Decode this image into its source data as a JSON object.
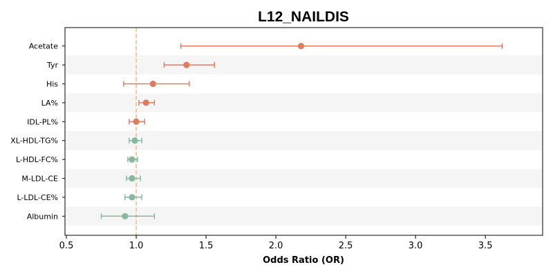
{
  "chart_data": {
    "type": "forest",
    "title": "L12_NAILDIS",
    "xlabel": "Odds Ratio (OR)",
    "ylabel": "",
    "xlim": [
      0.49,
      3.91
    ],
    "x_ticks": [
      0.5,
      1.0,
      1.5,
      2.0,
      2.5,
      3.0,
      3.5
    ],
    "x_tick_labels": [
      "0.5",
      "1.0",
      "1.5",
      "2.0",
      "2.5",
      "3.0",
      "3.5"
    ],
    "reference_line": {
      "x": 1.0,
      "style": "dashed",
      "color": "#f5c07a"
    },
    "grid": false,
    "row_banding": {
      "color": "#f5f5f5",
      "pattern": "alternate"
    },
    "colors": {
      "risk": "#e07b5f",
      "protective": "#84b8a0"
    },
    "points": [
      {
        "label": "Acetate",
        "or": 2.18,
        "ci_low": 1.32,
        "ci_high": 3.62,
        "group": "risk"
      },
      {
        "label": "Tyr",
        "or": 1.36,
        "ci_low": 1.2,
        "ci_high": 1.56,
        "group": "risk"
      },
      {
        "label": "His",
        "or": 1.12,
        "ci_low": 0.91,
        "ci_high": 1.38,
        "group": "risk"
      },
      {
        "label": "LA%",
        "or": 1.07,
        "ci_low": 1.02,
        "ci_high": 1.13,
        "group": "risk"
      },
      {
        "label": "IDL-PL%",
        "or": 1.0,
        "ci_low": 0.95,
        "ci_high": 1.06,
        "group": "risk"
      },
      {
        "label": "XL-HDL-TG%",
        "or": 0.99,
        "ci_low": 0.95,
        "ci_high": 1.04,
        "group": "protective"
      },
      {
        "label": "L-HDL-FC%",
        "or": 0.97,
        "ci_low": 0.94,
        "ci_high": 1.01,
        "group": "protective"
      },
      {
        "label": "M-LDL-CE",
        "or": 0.97,
        "ci_low": 0.93,
        "ci_high": 1.03,
        "group": "protective"
      },
      {
        "label": "L-LDL-CE%",
        "or": 0.97,
        "ci_low": 0.92,
        "ci_high": 1.04,
        "group": "protective"
      },
      {
        "label": "Albumin",
        "or": 0.92,
        "ci_low": 0.75,
        "ci_high": 1.13,
        "group": "protective"
      }
    ]
  }
}
